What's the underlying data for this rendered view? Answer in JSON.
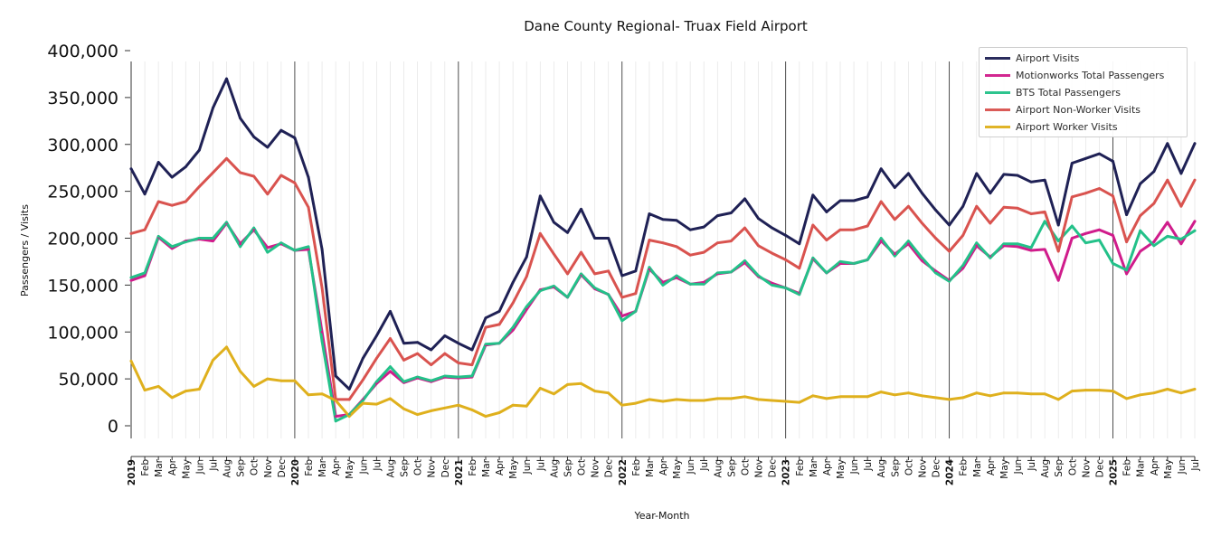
{
  "chart_data": {
    "type": "line",
    "title": "Dane County Regional- Truax Field Airport",
    "xlabel": "Year-Month",
    "ylabel": "Passengers / Visits",
    "ylim": [
      0,
      400000
    ],
    "yticks": [
      0,
      50000,
      100000,
      150000,
      200000,
      250000,
      300000,
      350000,
      400000
    ],
    "ytick_labels": [
      "0",
      "50,000",
      "100,000",
      "150,000",
      "200,000",
      "250,000",
      "300,000",
      "350,000",
      "400,000"
    ],
    "grid": "vertical monthly gridlines; dark vertical lines at year starts",
    "legend_position": "top-right",
    "x": [
      "2019-01",
      "2019-02",
      "2019-03",
      "2019-04",
      "2019-05",
      "2019-06",
      "2019-07",
      "2019-08",
      "2019-09",
      "2019-10",
      "2019-11",
      "2019-12",
      "2020-01",
      "2020-02",
      "2020-03",
      "2020-04",
      "2020-05",
      "2020-06",
      "2020-07",
      "2020-08",
      "2020-09",
      "2020-10",
      "2020-11",
      "2020-12",
      "2021-01",
      "2021-02",
      "2021-03",
      "2021-04",
      "2021-05",
      "2021-06",
      "2021-07",
      "2021-08",
      "2021-09",
      "2021-10",
      "2021-11",
      "2021-12",
      "2022-01",
      "2022-02",
      "2022-03",
      "2022-04",
      "2022-05",
      "2022-06",
      "2022-07",
      "2022-08",
      "2022-09",
      "2022-10",
      "2022-11",
      "2022-12",
      "2023-01",
      "2023-02",
      "2023-03",
      "2023-04",
      "2023-05",
      "2023-06",
      "2023-07",
      "2023-08",
      "2023-09",
      "2023-10",
      "2023-11",
      "2023-12",
      "2024-01",
      "2024-02",
      "2024-03",
      "2024-04",
      "2024-05",
      "2024-06",
      "2024-07",
      "2024-08",
      "2024-09",
      "2024-10",
      "2024-11",
      "2024-12",
      "2025-01",
      "2025-02",
      "2025-03",
      "2025-04",
      "2025-05",
      "2025-06",
      "2025-07"
    ],
    "x_tick_labels": [
      "2019",
      "Feb",
      "Mar",
      "Apr",
      "May",
      "Jun",
      "Jul",
      "Aug",
      "Sep",
      "Oct",
      "Nov",
      "Dec",
      "2020",
      "Feb",
      "Mar",
      "Apr",
      "May",
      "Jun",
      "Jul",
      "Aug",
      "Sep",
      "Oct",
      "Nov",
      "Dec",
      "2021",
      "Feb",
      "Mar",
      "Apr",
      "May",
      "Jun",
      "Jul",
      "Aug",
      "Sep",
      "Oct",
      "Nov",
      "Dec",
      "2022",
      "Feb",
      "Mar",
      "Apr",
      "May",
      "Jun",
      "Jul",
      "Aug",
      "Sep",
      "Oct",
      "Nov",
      "Dec",
      "2023",
      "Feb",
      "Mar",
      "Apr",
      "May",
      "Jun",
      "Jul",
      "Aug",
      "Sep",
      "Oct",
      "Nov",
      "Dec",
      "2024",
      "Feb",
      "Mar",
      "Apr",
      "May",
      "Jun",
      "Jul",
      "Aug",
      "Sep",
      "Oct",
      "Nov",
      "Dec",
      "2025",
      "Feb",
      "Mar",
      "Apr",
      "May",
      "Jun",
      "Jul"
    ],
    "series": [
      {
        "name": "Airport Visits",
        "color": "#1f2155",
        "values": [
          274000,
          247000,
          281000,
          265000,
          276000,
          294000,
          339000,
          370000,
          328000,
          308000,
          297000,
          315000,
          307000,
          265000,
          188000,
          53000,
          39000,
          72000,
          96000,
          122000,
          88000,
          89000,
          81000,
          96000,
          88000,
          81000,
          115000,
          122000,
          153000,
          180000,
          245000,
          217000,
          206000,
          231000,
          200000,
          200000,
          160000,
          165000,
          226000,
          220000,
          219000,
          209000,
          212000,
          224000,
          227000,
          242000,
          221000,
          211000,
          203000,
          194000,
          246000,
          228000,
          240000,
          240000,
          244000,
          274000,
          254000,
          269000,
          248000,
          230000,
          214000,
          234000,
          269000,
          248000,
          268000,
          267000,
          260000,
          262000,
          214000,
          280000,
          285000,
          290000,
          282000,
          225000,
          258000,
          271000,
          301000,
          269000,
          301000
        ]
      },
      {
        "name": "Motionworks Total Passengers",
        "color": "#d01c8b",
        "values": [
          155000,
          160000,
          201000,
          189000,
          197000,
          199000,
          197000,
          216000,
          194000,
          209000,
          190000,
          194000,
          187000,
          188000,
          100000,
          10000,
          12000,
          28000,
          45000,
          58000,
          46000,
          51000,
          47000,
          52000,
          51000,
          52000,
          86000,
          88000,
          102000,
          124000,
          145000,
          148000,
          137000,
          161000,
          146000,
          140000,
          117000,
          122000,
          167000,
          153000,
          158000,
          151000,
          153000,
          162000,
          164000,
          174000,
          159000,
          152000,
          147000,
          141000,
          178000,
          163000,
          173000,
          173000,
          177000,
          197000,
          183000,
          194000,
          176000,
          165000,
          155000,
          168000,
          192000,
          180000,
          192000,
          191000,
          187000,
          188000,
          155000,
          200000,
          205000,
          209000,
          203000,
          162000,
          186000,
          196000,
          217000,
          194000,
          218000
        ]
      },
      {
        "name": "BTS Total Passengers",
        "color": "#23c189",
        "values": [
          158000,
          163000,
          202000,
          191000,
          196000,
          200000,
          200000,
          217000,
          191000,
          211000,
          185000,
          195000,
          187000,
          191000,
          90000,
          5000,
          12000,
          27000,
          47000,
          63000,
          47000,
          52000,
          48000,
          53000,
          52000,
          53000,
          87000,
          88000,
          105000,
          127000,
          144000,
          149000,
          137000,
          162000,
          147000,
          140000,
          112000,
          122000,
          169000,
          150000,
          160000,
          151000,
          151000,
          163000,
          164000,
          176000,
          160000,
          150000,
          147000,
          140000,
          179000,
          163000,
          175000,
          173000,
          177000,
          200000,
          181000,
          197000,
          179000,
          163000,
          154000,
          171000,
          195000,
          179000,
          194000,
          194000,
          190000,
          218000,
          197000,
          213000,
          195000,
          198000,
          173000,
          166000,
          208000,
          192000,
          202000,
          199000,
          208000
        ]
      },
      {
        "name": "Airport Non-Worker Visits",
        "color": "#d9534f",
        "values": [
          205000,
          209000,
          239000,
          235000,
          239000,
          255000,
          270000,
          285000,
          270000,
          266000,
          247000,
          267000,
          259000,
          233000,
          147000,
          28000,
          28000,
          49000,
          72000,
          93000,
          70000,
          77000,
          65000,
          77000,
          67000,
          65000,
          105000,
          108000,
          131000,
          159000,
          205000,
          183000,
          162000,
          185000,
          162000,
          165000,
          137000,
          141000,
          198000,
          195000,
          191000,
          182000,
          185000,
          195000,
          197000,
          211000,
          192000,
          184000,
          177000,
          168000,
          214000,
          198000,
          209000,
          209000,
          213000,
          239000,
          220000,
          234000,
          216000,
          200000,
          186000,
          203000,
          234000,
          216000,
          233000,
          232000,
          226000,
          228000,
          186000,
          244000,
          248000,
          253000,
          245000,
          196000,
          224000,
          237000,
          262000,
          234000,
          262000
        ]
      },
      {
        "name": "Airport Worker Visits",
        "color": "#dfb01d",
        "values": [
          69000,
          38000,
          42000,
          30000,
          37000,
          39000,
          70000,
          84000,
          58000,
          42000,
          50000,
          48000,
          48000,
          33000,
          34000,
          27000,
          10000,
          24000,
          23000,
          29000,
          18000,
          12000,
          16000,
          19000,
          22000,
          17000,
          10000,
          14000,
          22000,
          21000,
          40000,
          34000,
          44000,
          45000,
          37000,
          35000,
          22000,
          24000,
          28000,
          26000,
          28000,
          27000,
          27000,
          29000,
          29000,
          31000,
          28000,
          27000,
          26000,
          25000,
          32000,
          29000,
          31000,
          31000,
          31000,
          36000,
          33000,
          35000,
          32000,
          30000,
          28000,
          30000,
          35000,
          32000,
          35000,
          35000,
          34000,
          34000,
          28000,
          37000,
          38000,
          38000,
          37000,
          29000,
          33000,
          35000,
          39000,
          35000,
          39000
        ]
      }
    ]
  }
}
